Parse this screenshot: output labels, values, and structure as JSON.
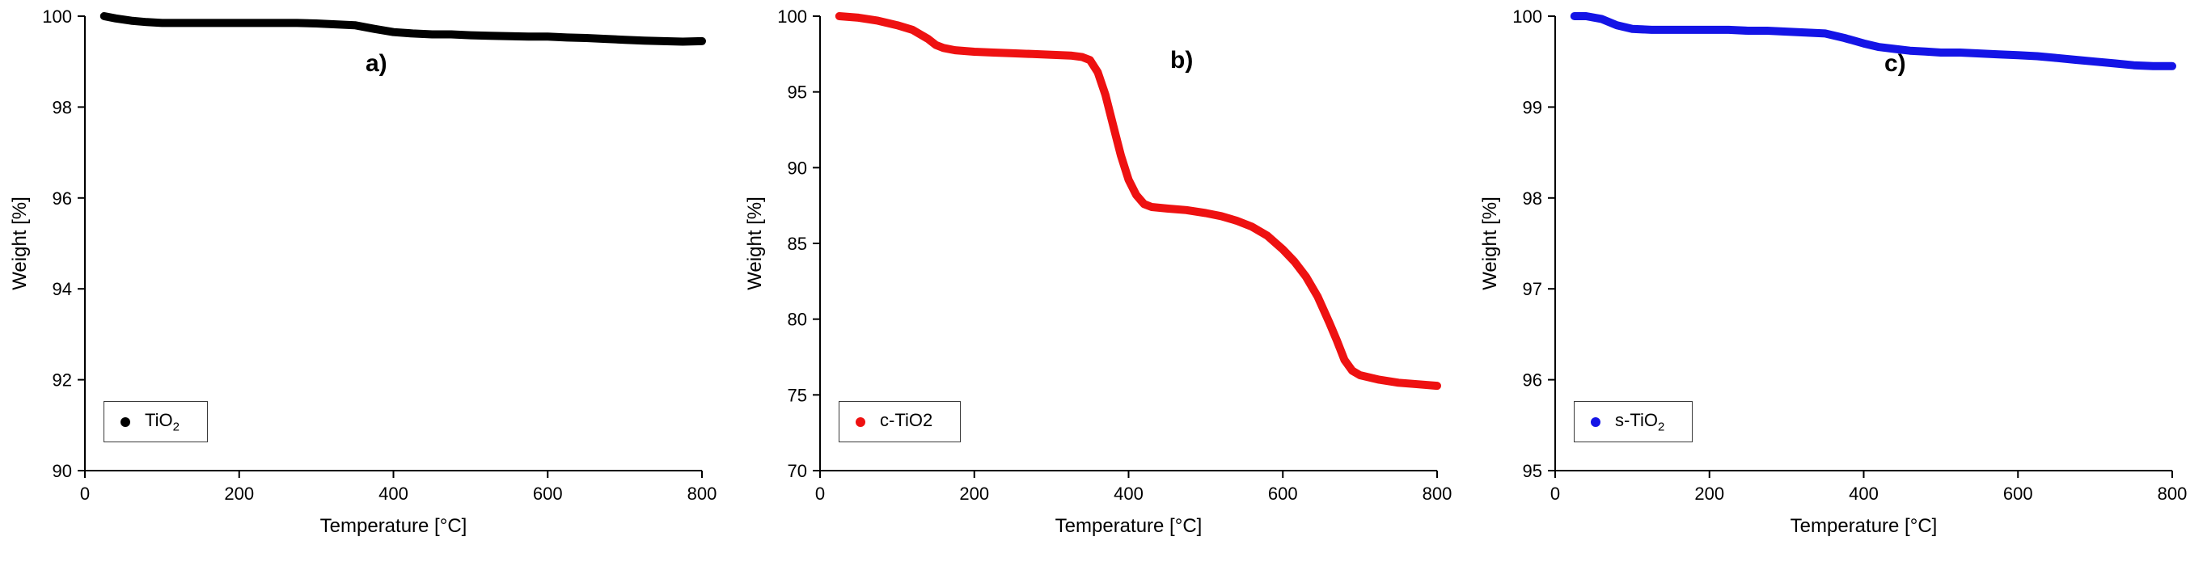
{
  "figure_title": "",
  "chart_data": [
    {
      "type": "line",
      "panel_label": "a)",
      "title": "",
      "xlabel": "Temperature [°C]",
      "ylabel": "Weight [%]",
      "xlim": [
        0,
        800
      ],
      "ylim": [
        90,
        100
      ],
      "xticks": [
        "0",
        "200",
        "400",
        "600",
        "800"
      ],
      "yticks": [
        "90",
        "92",
        "94",
        "96",
        "98",
        "100"
      ],
      "grid": false,
      "legend": {
        "position": "bottom-left",
        "label_main": "TiO",
        "label_sub": "2"
      },
      "series": [
        {
          "name": "TiO2",
          "color": "#000000",
          "x": [
            25,
            40,
            60,
            80,
            100,
            125,
            150,
            175,
            200,
            225,
            250,
            275,
            300,
            325,
            350,
            375,
            400,
            425,
            450,
            475,
            500,
            525,
            550,
            575,
            600,
            625,
            650,
            675,
            700,
            725,
            750,
            775,
            800
          ],
          "values": [
            100.0,
            99.95,
            99.9,
            99.87,
            99.85,
            99.85,
            99.85,
            99.85,
            99.85,
            99.85,
            99.85,
            99.85,
            99.84,
            99.82,
            99.8,
            99.72,
            99.65,
            99.62,
            99.6,
            99.6,
            99.58,
            99.57,
            99.56,
            99.55,
            99.55,
            99.53,
            99.52,
            99.5,
            99.48,
            99.46,
            99.45,
            99.44,
            99.45
          ]
        }
      ]
    },
    {
      "type": "line",
      "panel_label": "b)",
      "title": "",
      "xlabel": "Temperature [°C]",
      "ylabel": "Weight [%]",
      "xlim": [
        0,
        800
      ],
      "ylim": [
        70,
        100
      ],
      "xticks": [
        "0",
        "200",
        "400",
        "600",
        "800"
      ],
      "yticks": [
        "70",
        "75",
        "80",
        "85",
        "90",
        "95",
        "100"
      ],
      "grid": false,
      "legend": {
        "position": "bottom-left",
        "label_main": "c-TiO2",
        "label_sub": ""
      },
      "series": [
        {
          "name": "c-TiO2",
          "color": "#ee1111",
          "x": [
            25,
            50,
            75,
            100,
            120,
            140,
            150,
            160,
            175,
            200,
            225,
            250,
            275,
            300,
            325,
            340,
            350,
            360,
            370,
            380,
            390,
            400,
            410,
            420,
            430,
            450,
            475,
            500,
            520,
            540,
            560,
            580,
            600,
            615,
            630,
            645,
            660,
            670,
            680,
            690,
            700,
            725,
            750,
            775,
            800
          ],
          "values": [
            100.0,
            99.9,
            99.7,
            99.4,
            99.1,
            98.5,
            98.1,
            97.9,
            97.75,
            97.65,
            97.6,
            97.55,
            97.5,
            97.45,
            97.4,
            97.3,
            97.1,
            96.3,
            94.8,
            92.8,
            90.8,
            89.2,
            88.2,
            87.6,
            87.4,
            87.3,
            87.2,
            87.0,
            86.8,
            86.5,
            86.1,
            85.5,
            84.6,
            83.8,
            82.8,
            81.5,
            79.8,
            78.6,
            77.3,
            76.6,
            76.3,
            76.0,
            75.8,
            75.7,
            75.6
          ]
        }
      ]
    },
    {
      "type": "line",
      "panel_label": "c)",
      "title": "",
      "xlabel": "Temperature [°C]",
      "ylabel": "Weight [%]",
      "xlim": [
        0,
        800
      ],
      "ylim": [
        95,
        100
      ],
      "xticks": [
        "0",
        "200",
        "400",
        "600",
        "800"
      ],
      "yticks": [
        "95",
        "96",
        "97",
        "98",
        "99",
        "100"
      ],
      "grid": false,
      "legend": {
        "position": "bottom-left",
        "label_main": "s-TiO",
        "label_sub": "2"
      },
      "series": [
        {
          "name": "s-TiO2",
          "color": "#1414e6",
          "x": [
            25,
            40,
            60,
            80,
            100,
            125,
            150,
            175,
            200,
            225,
            250,
            275,
            300,
            325,
            350,
            375,
            400,
            420,
            440,
            460,
            480,
            500,
            525,
            550,
            575,
            600,
            625,
            650,
            675,
            700,
            725,
            750,
            775,
            800
          ],
          "values": [
            100.0,
            100.0,
            99.97,
            99.9,
            99.86,
            99.85,
            99.85,
            99.85,
            99.85,
            99.85,
            99.84,
            99.84,
            99.83,
            99.82,
            99.81,
            99.76,
            99.7,
            99.66,
            99.64,
            99.62,
            99.61,
            99.6,
            99.6,
            99.59,
            99.58,
            99.57,
            99.56,
            99.54,
            99.52,
            99.5,
            99.48,
            99.46,
            99.45,
            99.45
          ]
        }
      ]
    }
  ]
}
